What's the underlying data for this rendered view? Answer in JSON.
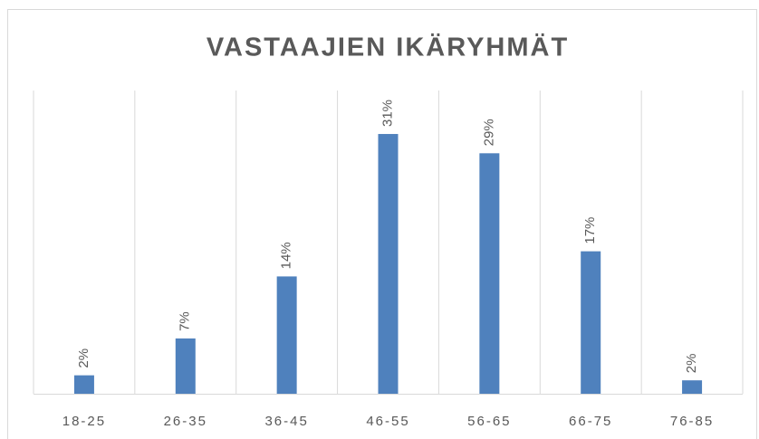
{
  "chart_data": {
    "type": "bar",
    "title": "VASTAAJIEN IKÄRYHMÄT",
    "categories": [
      "18-25",
      "26-35",
      "36-45",
      "46-55",
      "56-65",
      "66-75",
      "76-85"
    ],
    "values": [
      2.2,
      6.6,
      14,
      31,
      28.7,
      17,
      1.6
    ],
    "value_labels": [
      "2%",
      "7%",
      "14%",
      "31%",
      "29%",
      "17%",
      "2%"
    ],
    "color": "#4f81bd",
    "ylim": [
      0,
      35
    ]
  }
}
